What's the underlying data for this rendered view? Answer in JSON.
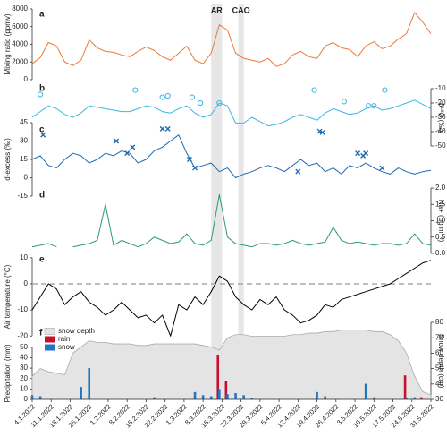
{
  "chart_data": [
    {
      "type": "line",
      "label": "a",
      "ylabel": "Mixing ratio (ppmv)",
      "yaxis": "left",
      "color": "#e8793a",
      "spans": [
        {
          "label": "AR",
          "xlim": [
            "2022-03-11",
            "2022-03-15"
          ]
        },
        {
          "label": "CAO",
          "xlim": [
            "2022-03-21",
            "2022-03-23"
          ]
        }
      ],
      "x": [
        "2022-01-04",
        "2022-01-07",
        "2022-01-10",
        "2022-01-13",
        "2022-01-16",
        "2022-01-19",
        "2022-01-22",
        "2022-01-25",
        "2022-01-28",
        "2022-01-31",
        "2022-02-03",
        "2022-02-06",
        "2022-02-09",
        "2022-02-12",
        "2022-02-15",
        "2022-02-18",
        "2022-02-21",
        "2022-02-24",
        "2022-02-27",
        "2022-03-02",
        "2022-03-05",
        "2022-03-08",
        "2022-03-11",
        "2022-03-14",
        "2022-03-17",
        "2022-03-20",
        "2022-03-23",
        "2022-03-26",
        "2022-03-29",
        "2022-04-01",
        "2022-04-04",
        "2022-04-07",
        "2022-04-10",
        "2022-04-13",
        "2022-04-16",
        "2022-04-19",
        "2022-04-22",
        "2022-04-25",
        "2022-04-28",
        "2022-05-01",
        "2022-05-04",
        "2022-05-07",
        "2022-05-10",
        "2022-05-13",
        "2022-05-16",
        "2022-05-19",
        "2022-05-22",
        "2022-05-25",
        "2022-05-28",
        "2022-05-31"
      ],
      "values": [
        1800,
        2500,
        4200,
        3800,
        2000,
        1600,
        2200,
        4500,
        3600,
        3200,
        3100,
        2800,
        2600,
        3200,
        3700,
        3300,
        2600,
        2200,
        3000,
        3800,
        2200,
        1800,
        3000,
        6200,
        5600,
        3000,
        2400,
        2200,
        2000,
        2400,
        1500,
        1800,
        2800,
        3200,
        2600,
        2400,
        3800,
        4200,
        3600,
        3400,
        2600,
        3800,
        4300,
        3500,
        3800,
        4600,
        5200,
        7600,
        6500,
        5200
      ],
      "ylim": [
        0,
        8500
      ],
      "yticks": [
        0,
        2000,
        4000,
        6000,
        8000
      ]
    },
    {
      "type": "line",
      "label": "b",
      "ylabel": "δ¹⁸O (‰)",
      "yaxis": "right",
      "color": "#3db5e6",
      "x": [
        "2022-01-04",
        "2022-01-07",
        "2022-01-10",
        "2022-01-13",
        "2022-01-16",
        "2022-01-19",
        "2022-01-22",
        "2022-01-25",
        "2022-01-28",
        "2022-01-31",
        "2022-02-03",
        "2022-02-06",
        "2022-02-09",
        "2022-02-12",
        "2022-02-15",
        "2022-02-18",
        "2022-02-21",
        "2022-02-24",
        "2022-02-27",
        "2022-03-02",
        "2022-03-05",
        "2022-03-08",
        "2022-03-11",
        "2022-03-14",
        "2022-03-17",
        "2022-03-20",
        "2022-03-23",
        "2022-03-26",
        "2022-03-29",
        "2022-04-01",
        "2022-04-04",
        "2022-04-07",
        "2022-04-10",
        "2022-04-13",
        "2022-04-16",
        "2022-04-19",
        "2022-04-22",
        "2022-04-25",
        "2022-04-28",
        "2022-05-01",
        "2022-05-04",
        "2022-05-07",
        "2022-05-10",
        "2022-05-13",
        "2022-05-16",
        "2022-05-19",
        "2022-05-22",
        "2022-05-25",
        "2022-05-28",
        "2022-05-31"
      ],
      "values": [
        -30,
        -26,
        -22,
        -24,
        -28,
        -30,
        -27,
        -22,
        -23,
        -24,
        -25,
        -26,
        -26,
        -24,
        -22,
        -23,
        -26,
        -27,
        -24,
        -22,
        -27,
        -30,
        -28,
        -20,
        -22,
        -34,
        -34,
        -30,
        -33,
        -36,
        -35,
        -33,
        -30,
        -28,
        -30,
        -32,
        -27,
        -24,
        -26,
        -28,
        -27,
        -24,
        -22,
        -25,
        -24,
        -22,
        -20,
        -18,
        -21,
        -24
      ],
      "points": {
        "marker": "circle",
        "x": [
          "2022-01-07",
          "2022-02-11",
          "2022-02-21",
          "2022-02-23",
          "2022-03-04",
          "2022-03-07",
          "2022-03-14",
          "2022-04-18",
          "2022-04-29",
          "2022-05-08",
          "2022-05-10",
          "2022-05-14"
        ],
        "values": [
          -14,
          -11,
          -16,
          -15,
          -16,
          -20,
          -20,
          -11,
          -19,
          -22,
          -22,
          -11
        ]
      },
      "ylim": [
        -55,
        -5
      ],
      "yticks": [
        -10,
        -20,
        -30,
        -40,
        -50
      ]
    },
    {
      "type": "line",
      "label": "c",
      "ylabel": "d-excess (‰)",
      "yaxis": "left",
      "color": "#1f68b0",
      "x": [
        "2022-01-04",
        "2022-01-07",
        "2022-01-10",
        "2022-01-13",
        "2022-01-16",
        "2022-01-19",
        "2022-01-22",
        "2022-01-25",
        "2022-01-28",
        "2022-01-31",
        "2022-02-03",
        "2022-02-06",
        "2022-02-09",
        "2022-02-12",
        "2022-02-15",
        "2022-02-18",
        "2022-02-21",
        "2022-02-24",
        "2022-02-27",
        "2022-03-02",
        "2022-03-05",
        "2022-03-08",
        "2022-03-11",
        "2022-03-14",
        "2022-03-17",
        "2022-03-20",
        "2022-03-23",
        "2022-03-26",
        "2022-03-29",
        "2022-04-01",
        "2022-04-04",
        "2022-04-07",
        "2022-04-10",
        "2022-04-13",
        "2022-04-16",
        "2022-04-19",
        "2022-04-22",
        "2022-04-25",
        "2022-04-28",
        "2022-05-01",
        "2022-05-04",
        "2022-05-07",
        "2022-05-10",
        "2022-05-13",
        "2022-05-16",
        "2022-05-19",
        "2022-05-22",
        "2022-05-25",
        "2022-05-28",
        "2022-05-31"
      ],
      "values": [
        15,
        18,
        10,
        8,
        15,
        20,
        18,
        12,
        15,
        20,
        18,
        22,
        20,
        12,
        15,
        22,
        25,
        30,
        35,
        20,
        8,
        10,
        12,
        5,
        8,
        0,
        3,
        5,
        8,
        10,
        8,
        5,
        10,
        15,
        10,
        12,
        5,
        8,
        3,
        10,
        8,
        12,
        8,
        5,
        3,
        8,
        5,
        3,
        5,
        6
      ],
      "points": {
        "marker": "cross",
        "x": [
          "2022-01-08",
          "2022-02-04",
          "2022-02-08",
          "2022-02-10",
          "2022-02-21",
          "2022-02-23",
          "2022-03-03",
          "2022-03-05",
          "2022-04-12",
          "2022-04-20",
          "2022-04-21",
          "2022-05-04",
          "2022-05-06",
          "2022-05-07",
          "2022-05-13"
        ],
        "values": [
          35,
          30,
          20,
          25,
          40,
          40,
          15,
          8,
          5,
          38,
          37,
          20,
          18,
          20,
          8
        ]
      },
      "ylim": [
        -15,
        45
      ],
      "yticks": [
        -15,
        0,
        15,
        30,
        45
      ]
    },
    {
      "type": "line",
      "label": "d",
      "ylabel": "Na+ (µg m⁻³)",
      "yaxis": "right",
      "color": "#2a9a7c",
      "x": [
        "2022-01-04",
        "2022-01-07",
        "2022-01-10",
        "2022-01-13",
        "2022-01-16",
        "2022-01-19",
        "2022-01-22",
        "2022-01-25",
        "2022-01-28",
        "2022-01-31",
        "2022-02-03",
        "2022-02-06",
        "2022-02-09",
        "2022-02-12",
        "2022-02-15",
        "2022-02-18",
        "2022-02-21",
        "2022-02-24",
        "2022-02-27",
        "2022-03-02",
        "2022-03-05",
        "2022-03-08",
        "2022-03-11",
        "2022-03-14",
        "2022-03-17",
        "2022-03-20",
        "2022-03-23",
        "2022-03-26",
        "2022-03-29",
        "2022-04-01",
        "2022-04-04",
        "2022-04-07",
        "2022-04-10",
        "2022-04-13",
        "2022-04-16",
        "2022-04-19",
        "2022-04-22",
        "2022-04-25",
        "2022-04-28",
        "2022-05-01",
        "2022-05-04",
        "2022-05-07",
        "2022-05-10",
        "2022-05-13",
        "2022-05-16",
        "2022-05-19",
        "2022-05-22",
        "2022-05-25",
        "2022-05-28",
        "2022-05-31"
      ],
      "values": [
        0.2,
        0.25,
        0.3,
        0.2,
        null,
        0.2,
        0.25,
        0.3,
        0.4,
        1.5,
        0.25,
        0.4,
        0.3,
        0.2,
        0.3,
        0.5,
        0.4,
        0.3,
        0.35,
        0.6,
        0.3,
        0.25,
        0.4,
        1.8,
        0.5,
        0.3,
        0.25,
        0.2,
        0.3,
        0.3,
        0.25,
        0.3,
        0.4,
        0.3,
        0.25,
        0.3,
        0.35,
        0.8,
        0.4,
        0.3,
        0.35,
        0.3,
        0.25,
        0.3,
        0.3,
        0.25,
        0.3,
        0.6,
        0.3,
        0.25
      ],
      "ylim": [
        0,
        2
      ],
      "yticks": [
        {
          "value": 0,
          "label": "0.0"
        },
        0.5,
        {
          "value": 1,
          "label": "1.0"
        },
        1.5,
        {
          "value": 2,
          "label": "2.0"
        }
      ]
    },
    {
      "type": "line",
      "label": "e",
      "ylabel": "Air temperature (°C)",
      "yaxis": "left",
      "color": "#000000",
      "refline": 0,
      "x": [
        "2022-01-04",
        "2022-01-07",
        "2022-01-10",
        "2022-01-13",
        "2022-01-16",
        "2022-01-19",
        "2022-01-22",
        "2022-01-25",
        "2022-01-28",
        "2022-01-31",
        "2022-02-03",
        "2022-02-06",
        "2022-02-09",
        "2022-02-12",
        "2022-02-15",
        "2022-02-18",
        "2022-02-21",
        "2022-02-24",
        "2022-02-27",
        "2022-03-02",
        "2022-03-05",
        "2022-03-08",
        "2022-03-11",
        "2022-03-14",
        "2022-03-17",
        "2022-03-20",
        "2022-03-23",
        "2022-03-26",
        "2022-03-29",
        "2022-04-01",
        "2022-04-04",
        "2022-04-07",
        "2022-04-10",
        "2022-04-13",
        "2022-04-16",
        "2022-04-19",
        "2022-04-22",
        "2022-04-25",
        "2022-04-28",
        "2022-05-01",
        "2022-05-04",
        "2022-05-07",
        "2022-05-10",
        "2022-05-13",
        "2022-05-16",
        "2022-05-19",
        "2022-05-22",
        "2022-05-25",
        "2022-05-28",
        "2022-05-31"
      ],
      "values": [
        -10,
        -5,
        0,
        -2,
        -8,
        -5,
        -3,
        -7,
        -9,
        -12,
        -10,
        -7,
        -10,
        -13,
        -12,
        -15,
        -12,
        -20,
        -8,
        -10,
        -5,
        -8,
        -3,
        3,
        1,
        -5,
        -8,
        -10,
        -6,
        -8,
        -5,
        -10,
        -12,
        -15,
        -14,
        -12,
        -8,
        -9,
        -6,
        -5,
        -4,
        -3,
        -2,
        -1,
        0,
        2,
        4,
        6,
        8,
        9
      ],
      "ylim": [
        -23,
        12
      ],
      "yticks": [
        10,
        0,
        -10,
        -20
      ]
    },
    {
      "type": "bar",
      "label": "f",
      "ylabel": "Precipitation (mm)",
      "y2label": "Snow depth (cm)",
      "yaxis": "left",
      "legend": "upper left",
      "x": [
        "2022-01-04",
        "2022-01-07",
        "2022-01-10",
        "2022-01-13",
        "2022-01-16",
        "2022-01-19",
        "2022-01-22",
        "2022-01-25",
        "2022-01-28",
        "2022-01-31",
        "2022-02-03",
        "2022-02-06",
        "2022-02-09",
        "2022-02-12",
        "2022-02-15",
        "2022-02-18",
        "2022-02-21",
        "2022-02-24",
        "2022-02-27",
        "2022-03-02",
        "2022-03-05",
        "2022-03-08",
        "2022-03-11",
        "2022-03-14",
        "2022-03-17",
        "2022-03-20",
        "2022-03-23",
        "2022-03-26",
        "2022-03-29",
        "2022-04-01",
        "2022-04-04",
        "2022-04-07",
        "2022-04-10",
        "2022-04-13",
        "2022-04-16",
        "2022-04-19",
        "2022-04-22",
        "2022-04-25",
        "2022-04-28",
        "2022-05-01",
        "2022-05-04",
        "2022-05-07",
        "2022-05-10",
        "2022-05-13",
        "2022-05-16",
        "2022-05-19",
        "2022-05-22",
        "2022-05-25",
        "2022-05-28",
        "2022-05-31"
      ],
      "series": [
        {
          "name": "snow depth",
          "type": "area",
          "axis": "y2",
          "color": "#e4e4e4",
          "values": [
            45,
            50,
            48,
            47,
            46,
            60,
            64,
            68,
            67,
            67,
            66,
            66,
            66,
            65,
            65,
            66,
            66,
            66,
            66,
            66,
            66,
            65,
            64,
            62,
            70,
            72,
            72,
            71,
            71,
            71,
            71,
            71,
            72,
            72,
            73,
            73,
            74,
            74,
            75,
            75,
            75,
            75,
            74,
            74,
            72,
            68,
            60,
            45,
            35,
            33
          ]
        },
        {
          "name": "rain",
          "type": "bar",
          "color": "#c8102e",
          "values": [
            0,
            0,
            0,
            0,
            0,
            0,
            0,
            0,
            0,
            0,
            0,
            0,
            0,
            0,
            0,
            0,
            0,
            0,
            0,
            0,
            0,
            0,
            0,
            43,
            18,
            0,
            0,
            0,
            0,
            0,
            0,
            0,
            0,
            0,
            0,
            0,
            0,
            0,
            0,
            0,
            0,
            0,
            0,
            0,
            0,
            0,
            23,
            0,
            2,
            0
          ]
        },
        {
          "name": "snow",
          "type": "bar",
          "color": "#1f77c4",
          "values": [
            4,
            3,
            0,
            0,
            0,
            0,
            12,
            30,
            0,
            0,
            0,
            0,
            0,
            0,
            0,
            2,
            0,
            0,
            0,
            0,
            7,
            4,
            3,
            10,
            5,
            6,
            4,
            1,
            0,
            0,
            0,
            0,
            0,
            0,
            0,
            7,
            3,
            0,
            0,
            0,
            0,
            15,
            2,
            0,
            0,
            0,
            1,
            2,
            0,
            0
          ]
        }
      ],
      "ylim": [
        0,
        55
      ],
      "yticks": [
        0,
        10,
        20,
        30,
        40,
        50
      ],
      "y2lim": [
        30,
        80
      ],
      "y2ticks": [
        30,
        40,
        50,
        60,
        70,
        80
      ],
      "xlim": [
        "2022-01-04",
        "2022-05-31"
      ],
      "xticks": [
        {
          "value": "2022-01-04",
          "label": "4.1.2022"
        },
        {
          "value": "2022-01-11",
          "label": "11.1.2022"
        },
        {
          "value": "2022-01-18",
          "label": "18.1.2022"
        },
        {
          "value": "2022-01-25",
          "label": "25.1.2022"
        },
        {
          "value": "2022-02-01",
          "label": "1.2.2022"
        },
        {
          "value": "2022-02-08",
          "label": "8.2.2022"
        },
        {
          "value": "2022-02-15",
          "label": "15.2.2022"
        },
        {
          "value": "2022-02-22",
          "label": "22.2.2022"
        },
        {
          "value": "2022-03-01",
          "label": "1.3.2022"
        },
        {
          "value": "2022-03-08",
          "label": "8.3.2022"
        },
        {
          "value": "2022-03-15",
          "label": "15.3.2022"
        },
        {
          "value": "2022-03-22",
          "label": "22.3.2022"
        },
        {
          "value": "2022-03-29",
          "label": "29.3.2022"
        },
        {
          "value": "2022-04-05",
          "label": "5.4.2022"
        },
        {
          "value": "2022-04-12",
          "label": "12.4.2022"
        },
        {
          "value": "2022-04-19",
          "label": "19.4.2022"
        },
        {
          "value": "2022-04-26",
          "label": "26.4.2022"
        },
        {
          "value": "2022-05-03",
          "label": "3.5.2022"
        },
        {
          "value": "2022-05-10",
          "label": "10.5.2022"
        },
        {
          "value": "2022-05-17",
          "label": "17.5.2022"
        },
        {
          "value": "2022-05-24",
          "label": "24.5.2022"
        },
        {
          "value": "2022-05-31",
          "label": "31.5.2022"
        }
      ]
    }
  ]
}
